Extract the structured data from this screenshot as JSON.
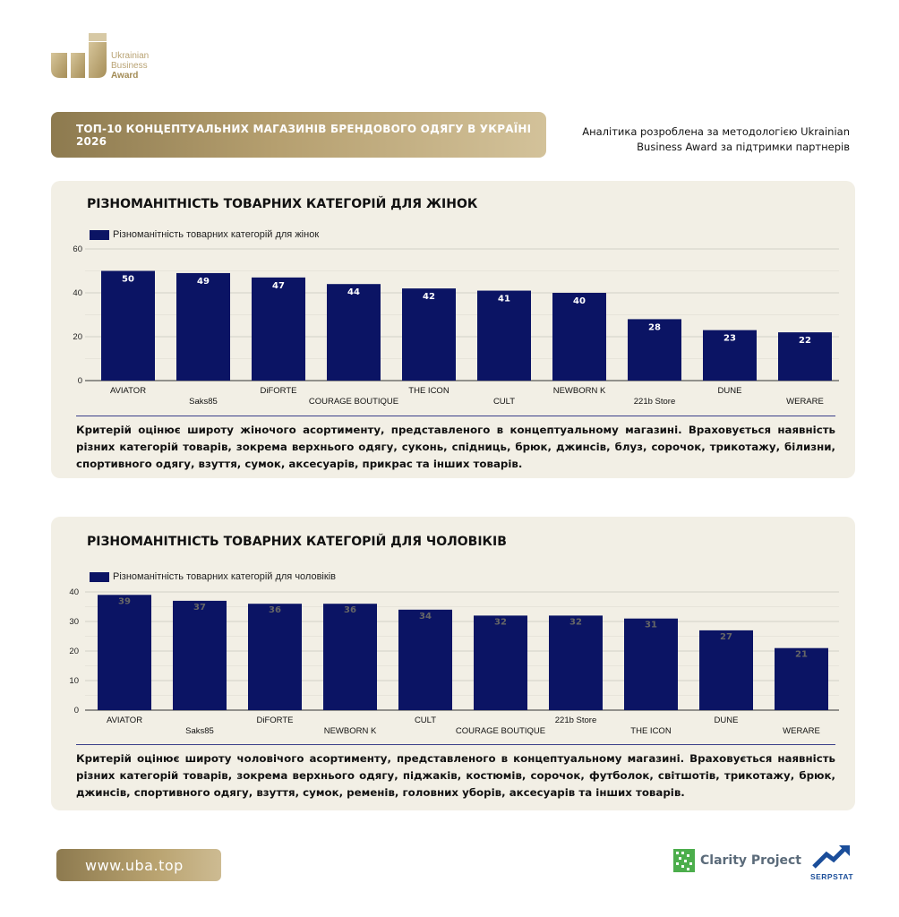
{
  "brand": {
    "logo_line1": "Ukrainian",
    "logo_line2": "Business",
    "logo_line3": "Award",
    "accent_gold": "#b39d6c",
    "bar_color": "#0b1464"
  },
  "header": {
    "title": "ТОП-10 КОНЦЕПТУАЛЬНИХ МАГАЗИНІВ БРЕНДОВОГО ОДЯГУ В УКРАЇНІ 2026",
    "subtitle": "Аналітика розроблена за методологією Ukrainian Business Award за підтримки партнерів"
  },
  "chart_data": [
    {
      "type": "bar",
      "title": "РІЗНОМАНІТНІСТЬ ТОВАРНИХ КАТЕГОРІЙ ДЛЯ ЖІНОК",
      "categories": [
        "AVIATOR",
        "Saks85",
        "DiFORTE",
        "COURAGE BOUTIQUE",
        "THE ICON",
        "CULT",
        "NEWBORN K",
        "221b Store",
        "DUNE",
        "WERARE"
      ],
      "series": [
        {
          "name": "Різноманітність товарних категорій для жінок",
          "values": [
            50,
            49,
            47,
            44,
            42,
            41,
            40,
            28,
            23,
            22
          ]
        }
      ],
      "ylim": [
        0,
        60
      ],
      "yticks": [
        0,
        20,
        40,
        60
      ],
      "grid": true,
      "legend": "top-left",
      "label_color": "#ffffff"
    },
    {
      "type": "bar",
      "title": "РІЗНОМАНІТНІСТЬ ТОВАРНИХ КАТЕГОРІЙ ДЛЯ ЧОЛОВІКІВ",
      "categories": [
        "AVIATOR",
        "Saks85",
        "DiFORTE",
        "NEWBORN K",
        "CULT",
        "COURAGE BOUTIQUE",
        "221b Store",
        "THE ICON",
        "DUNE",
        "WERARE"
      ],
      "series": [
        {
          "name": "Різноманітність товарних категорій для чоловіків",
          "values": [
            39,
            37,
            36,
            36,
            34,
            32,
            32,
            31,
            27,
            21
          ]
        }
      ],
      "ylim": [
        0,
        40
      ],
      "yticks": [
        0,
        10,
        20,
        30,
        40
      ],
      "grid": true,
      "legend": "top-left",
      "label_color": "#666666"
    }
  ],
  "women_desc": "Критерій оцінює широту жіночого асортименту, представленого в концептуальному магазині. Враховується наявність різних категорій товарів, зокрема верхнього одягу, суконь, спідниць, брюк, джинсів, блуз, сорочок, трикотажу, білизни, спортивного одягу, взуття, сумок, аксесуарів, прикрас та інших товарів.",
  "men_desc": "Критерій оцінює широту чоловічого асортименту, представленого в концептуальному магазині. Враховується наявність різних категорій товарів, зокрема верхнього одягу, піджаків, костюмів, сорочок, футболок, світшотів, трикотажу, брюк, джинсів, спортивного одягу, взуття, сумок, ременів, головних уборів, аксесуарів та інших товарів.",
  "footer": {
    "url": "www.uba.top",
    "partner1": "Clarity Project",
    "partner2": "SERPSTAT"
  }
}
